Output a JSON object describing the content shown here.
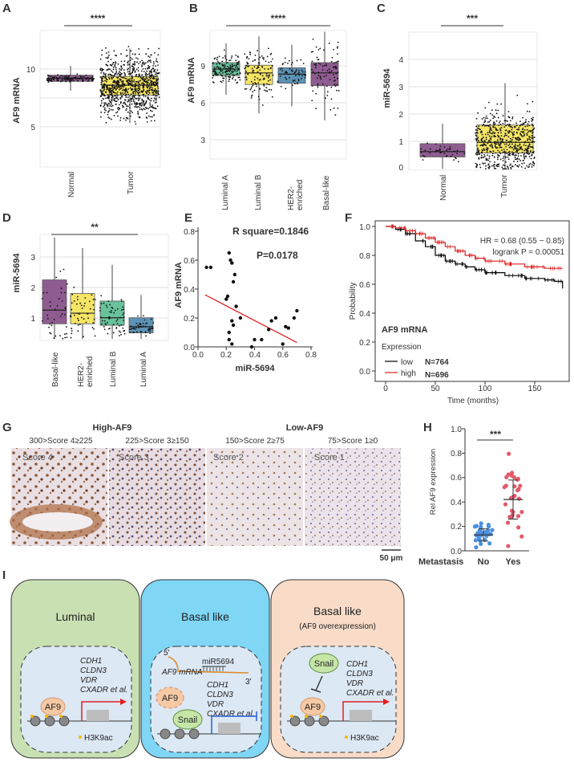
{
  "panels": {
    "A": {
      "label": "A",
      "ylabel": "AF9 mRNA",
      "yticks": [
        "10",
        "5"
      ],
      "sig": "****",
      "cats": [
        "Normal",
        "Tumor"
      ],
      "chart_data": {
        "type": "box",
        "title": "",
        "ylabel": "AF9 mRNA",
        "ylim": [
          1.5,
          12.5
        ],
        "boxes": [
          {
            "name": "Normal",
            "q1": 8.4,
            "median": 8.65,
            "q3": 8.9,
            "color": "#7b3f7e"
          },
          {
            "name": "Tumor",
            "q1": 7.3,
            "median": 8.1,
            "q3": 8.8,
            "color": "#f3e14a"
          }
        ]
      }
    },
    "B": {
      "label": "B",
      "ylabel": "AF9 mRNA",
      "yticks": [
        "9",
        "6",
        "3"
      ],
      "sig": "****",
      "cats": [
        "Luminal A",
        "Luminal B",
        "HER2-\nenriched",
        "Basal-like"
      ],
      "chart_data": {
        "type": "box",
        "ylabel": "AF9 mRNA",
        "ylim": [
          1.5,
          11.5
        ],
        "boxes": [
          {
            "name": "Luminal A",
            "q1": 8.0,
            "median": 8.5,
            "q3": 9.0,
            "color": "#4db88c"
          },
          {
            "name": "Luminal B",
            "q1": 7.3,
            "median": 8.2,
            "q3": 8.8,
            "color": "#f3e14a"
          },
          {
            "name": "HER2-enriched",
            "q1": 7.4,
            "median": 8.1,
            "q3": 8.6,
            "color": "#3f7fa8"
          },
          {
            "name": "Basal-like",
            "q1": 7.2,
            "median": 8.2,
            "q3": 9.0,
            "color": "#7b3f7e"
          }
        ]
      }
    },
    "C": {
      "label": "C",
      "ylabel": "miR-5694",
      "yticks": [
        "4",
        "3",
        "2",
        "1",
        "0"
      ],
      "sig": "***",
      "cats": [
        "Normal",
        "Tumor"
      ],
      "chart_data": {
        "type": "box",
        "ylabel": "miR-5694",
        "ylim": [
          -0.2,
          5.0
        ],
        "boxes": [
          {
            "name": "Normal",
            "q1": 0.3,
            "median": 0.5,
            "q3": 0.8,
            "color": "#7b3f7e"
          },
          {
            "name": "Tumor",
            "q1": 0.45,
            "median": 0.85,
            "q3": 1.5,
            "color": "#f3e14a"
          }
        ]
      }
    },
    "D": {
      "label": "D",
      "ylabel": "miR-5694",
      "yticks": [
        "3",
        "2",
        "1"
      ],
      "sig": "**",
      "cats": [
        "Basal-like",
        "HER2-\nenriched",
        "Luminal B",
        "Luminal A"
      ],
      "chart_data": {
        "type": "box",
        "ylabel": "miR-5694",
        "ylim": [
          0.3,
          3.8
        ],
        "boxes": [
          {
            "name": "Basal-like",
            "q1": 0.85,
            "median": 1.3,
            "q3": 2.3,
            "color": "#7b3f7e"
          },
          {
            "name": "HER2-enriched",
            "q1": 0.85,
            "median": 1.2,
            "q3": 1.85,
            "color": "#f3e14a"
          },
          {
            "name": "Luminal B",
            "q1": 0.8,
            "median": 1.05,
            "q3": 1.6,
            "color": "#4db88c"
          },
          {
            "name": "Luminal A",
            "q1": 0.55,
            "median": 0.75,
            "q3": 1.05,
            "color": "#3f7fa8"
          }
        ]
      }
    },
    "E": {
      "label": "E",
      "ylabel": "AF9 mRNA",
      "xlabel": "miR-5694",
      "xticks": [
        "0.0",
        "0.2",
        "0.4",
        "0.6",
        "0.8"
      ],
      "yticks": [
        "0.0",
        "0.2",
        "0.4",
        "0.6",
        "0.8"
      ],
      "rsq": "R square=0.1846",
      "p": "P=0.0178",
      "chart_data": {
        "type": "scatter",
        "xlabel": "miR-5694",
        "ylabel": "AF9 mRNA",
        "xlim": [
          0,
          0.8
        ],
        "ylim": [
          0,
          0.8
        ],
        "x": [
          0.06,
          0.09,
          0.2,
          0.21,
          0.22,
          0.23,
          0.24,
          0.25,
          0.26,
          0.27,
          0.22,
          0.24,
          0.3,
          0.22,
          0.24,
          0.25,
          0.38,
          0.4,
          0.45,
          0.5,
          0.52,
          0.55,
          0.6,
          0.62,
          0.64,
          0.68,
          0.7
        ],
        "y": [
          0.55,
          0.55,
          0.33,
          0.35,
          0.65,
          0.6,
          0.58,
          0.45,
          0.5,
          0.28,
          0.05,
          0.02,
          0.2,
          0.1,
          0.18,
          0.15,
          0.0,
          0.05,
          0.05,
          0.12,
          0.18,
          0.2,
          0.02,
          0.14,
          0.13,
          0.2,
          0.25
        ],
        "fit": [
          [
            0.05,
            0.36
          ],
          [
            0.7,
            0.03
          ]
        ]
      }
    },
    "F": {
      "label": "F",
      "ylabel": "Probability",
      "xlabel": "Time (months)",
      "xticks": [
        "0",
        "50",
        "100",
        "150"
      ],
      "yticks": [
        "0.0",
        "0.2",
        "0.4",
        "0.6",
        "0.8",
        "1.0"
      ],
      "hr": "HR = 0.68 (0.55 − 0.85)",
      "logrank": "logrank P = 0.00051",
      "gene": "AF9 mRNA",
      "exprlabel": "Expression",
      "low": "low",
      "high": "high",
      "nlow": "N=764",
      "nhigh": "N=696",
      "chart_data": {
        "type": "line",
        "xlabel": "Time (months)",
        "ylabel": "Probability",
        "xlim": [
          0,
          180
        ],
        "ylim": [
          0,
          1
        ],
        "series": [
          {
            "name": "low",
            "color": "#000000",
            "points": [
              [
                0,
                1
              ],
              [
                10,
                0.98
              ],
              [
                20,
                0.95
              ],
              [
                30,
                0.9
              ],
              [
                40,
                0.86
              ],
              [
                50,
                0.8
              ],
              [
                60,
                0.76
              ],
              [
                70,
                0.74
              ],
              [
                80,
                0.72
              ],
              [
                90,
                0.7
              ],
              [
                100,
                0.68
              ],
              [
                120,
                0.66
              ],
              [
                140,
                0.64
              ],
              [
                160,
                0.63
              ],
              [
                170,
                0.62
              ],
              [
                178,
                0.57
              ]
            ]
          },
          {
            "name": "high",
            "color": "#e02020",
            "points": [
              [
                0,
                1
              ],
              [
                10,
                0.99
              ],
              [
                20,
                0.97
              ],
              [
                30,
                0.95
              ],
              [
                40,
                0.92
              ],
              [
                50,
                0.89
              ],
              [
                60,
                0.86
              ],
              [
                70,
                0.83
              ],
              [
                80,
                0.8
              ],
              [
                90,
                0.78
              ],
              [
                100,
                0.76
              ],
              [
                120,
                0.74
              ],
              [
                140,
                0.72
              ],
              [
                160,
                0.71
              ],
              [
                178,
                0.71
              ]
            ]
          }
        ]
      }
    },
    "G": {
      "label": "G",
      "high": "High-AF9",
      "low": "Low-AF9",
      "titles": [
        "300>Score 4≥225",
        "225>Score 3≥150",
        "150>Score 2≥75",
        "75>Score 1≥0"
      ],
      "scores": [
        "Score 4",
        "Score 3",
        "Score 2",
        "Score 1"
      ],
      "scale": "50 μm"
    },
    "H": {
      "label": "H",
      "ylabel": "Rel AF9 expression",
      "yticks": [
        "1.0",
        "0.8",
        "0.6",
        "0.4",
        "0.2",
        "0.0"
      ],
      "sig": "***",
      "xtitle": "Metastasis",
      "cats": [
        "No",
        "Yes"
      ],
      "chart_data": {
        "type": "dot",
        "ylabel": "Rel AF9 expression",
        "ylim": [
          0,
          1.0
        ],
        "groups": [
          {
            "name": "No",
            "mean": 0.13,
            "sd": 0.05,
            "color": "#4a90e2"
          },
          {
            "name": "Yes",
            "mean": 0.42,
            "sd": 0.16,
            "color": "#e05a6a"
          }
        ]
      }
    },
    "I": {
      "label": "I",
      "cell1": {
        "title": "Luminal",
        "genes": [
          "CDH1",
          "CLDN3",
          "VDR",
          "CXADR et al."
        ],
        "af9": "AF9",
        "h3k9": "H3K9ac"
      },
      "cell2": {
        "title": "Basal like",
        "five": "5'",
        "three": "3'",
        "mir": "miR5694",
        "mrna": "AF9 mRNA",
        "af9": "AF9",
        "snail": "Snail",
        "genes": [
          "CDH1",
          "CLDN3",
          "VDR",
          "CXADR et al."
        ]
      },
      "cell3": {
        "title": "Basal like",
        "sub": "(AF9 overexpression)",
        "snail": "Snail",
        "af9": "AF9",
        "genes": [
          "CDH1",
          "CLDN3",
          "VDR",
          "CXADR et al."
        ],
        "h3k9": "H3K9ac"
      }
    }
  }
}
